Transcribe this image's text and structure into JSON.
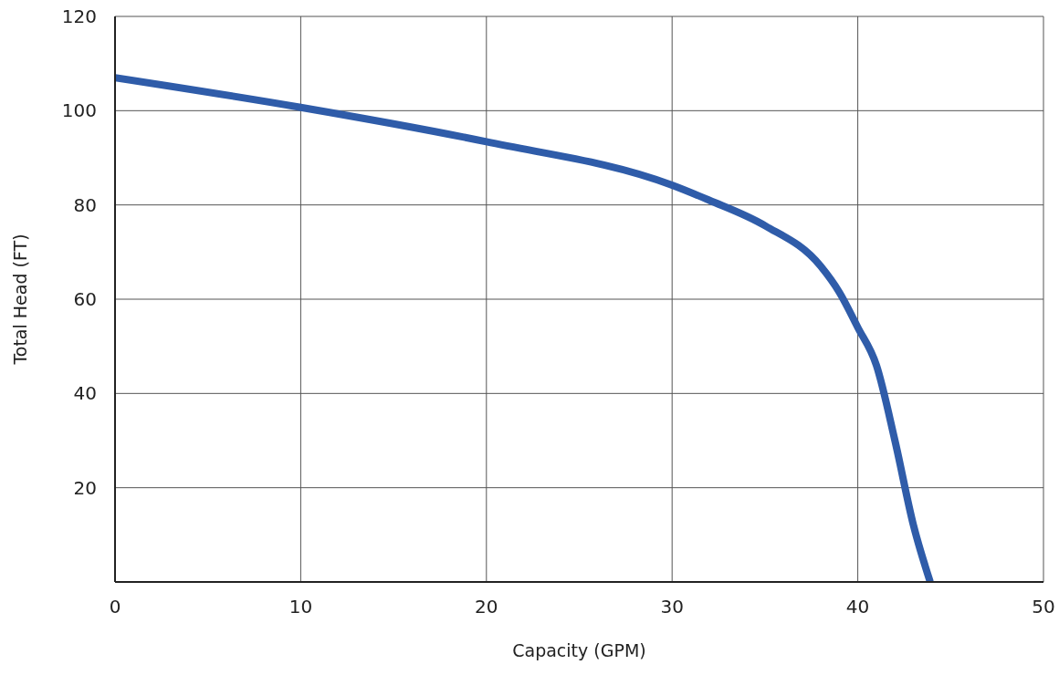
{
  "chart_data": {
    "type": "line",
    "xlabel": "Capacity (GPM)",
    "ylabel": "Total Head (FT)",
    "x": [
      0,
      10,
      20,
      30,
      32,
      35,
      38,
      39,
      40,
      41,
      42,
      43,
      43.9
    ],
    "series": [
      {
        "color": "#2f5ca9",
        "values": [
          107,
          100.7,
          93.4,
          84.2,
          81,
          75.6,
          67,
          61.5,
          54,
          46,
          30,
          12,
          0
        ]
      }
    ],
    "xlim": [
      0,
      50
    ],
    "xticks": [
      0,
      10,
      20,
      30,
      40,
      50
    ],
    "ylim": [
      0,
      120
    ],
    "yticks": [
      {
        "value": 0,
        "label": null
      },
      20,
      40,
      60,
      80,
      100,
      120
    ],
    "grid": true,
    "legend": false,
    "marker": "none",
    "line_style": "solid"
  }
}
